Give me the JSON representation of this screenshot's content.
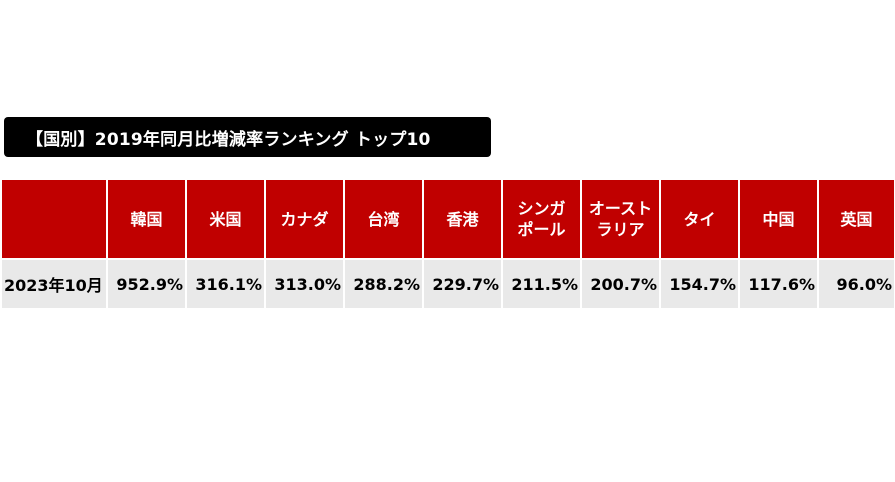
{
  "title": "【国別】2019年同月比増減率ランキング トップ10",
  "chart_data": {
    "type": "table",
    "title": "【国別】2019年同月比増減率ランキング トップ10",
    "corner_label": "",
    "columns": [
      "韓国",
      "米国",
      "カナダ",
      "台湾",
      "香港",
      "シンガポール",
      "オーストラリア",
      "タイ",
      "中国",
      "英国"
    ],
    "column_lines": [
      [
        "韓国"
      ],
      [
        "米国"
      ],
      [
        "カナダ"
      ],
      [
        "台湾"
      ],
      [
        "香港"
      ],
      [
        "シンガ",
        "ポール"
      ],
      [
        "オースト",
        "ラリア"
      ],
      [
        "タイ"
      ],
      [
        "中国"
      ],
      [
        "英国"
      ]
    ],
    "rows": [
      {
        "label": "2023年10月",
        "values": [
          952.9,
          316.1,
          313.0,
          288.2,
          229.7,
          211.5,
          200.7,
          154.7,
          117.6,
          96.0
        ],
        "display": [
          "952.9%",
          "316.1%",
          "313.0%",
          "288.2%",
          "229.7%",
          "211.5%",
          "200.7%",
          "154.7%",
          "117.6%",
          "96.0%"
        ]
      }
    ],
    "unit": "%",
    "colors": {
      "header_bg": "#c00000",
      "header_text": "#ffffff",
      "row_bg": "#e9e9e9",
      "title_bg": "#000000"
    }
  }
}
